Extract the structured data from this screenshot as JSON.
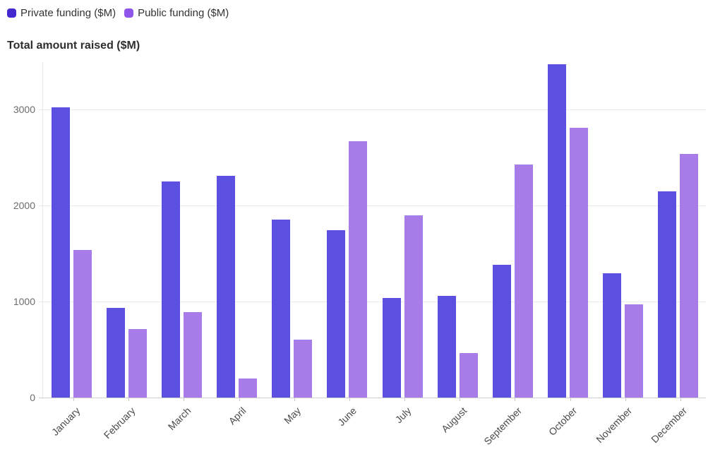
{
  "title": "Total amount raised ($M)",
  "chart_data": {
    "type": "bar",
    "title": "Total amount raised ($M)",
    "categories": [
      "January",
      "February",
      "March",
      "April",
      "May",
      "June",
      "July",
      "August",
      "September",
      "October",
      "November",
      "December"
    ],
    "series": [
      {
        "name": "Private funding ($M)",
        "color": "#5b50e0",
        "legend_color": "#4329cf",
        "values": [
          3020,
          935,
          2250,
          2310,
          1855,
          1745,
          1035,
          1060,
          1385,
          3470,
          1295,
          2145
        ]
      },
      {
        "name": "Public funding ($M)",
        "color": "#a87ce8",
        "legend_color": "#8f55ea",
        "values": [
          1540,
          710,
          890,
          200,
          600,
          2670,
          1895,
          460,
          2430,
          2810,
          970,
          2540
        ]
      }
    ],
    "xlabel": "",
    "ylabel": "",
    "y_ticks": [
      0,
      1000,
      2000,
      3000
    ],
    "ylim": [
      0,
      3500
    ],
    "grid": true,
    "legend_position": "top-left",
    "x_tick_rotation": -45
  }
}
